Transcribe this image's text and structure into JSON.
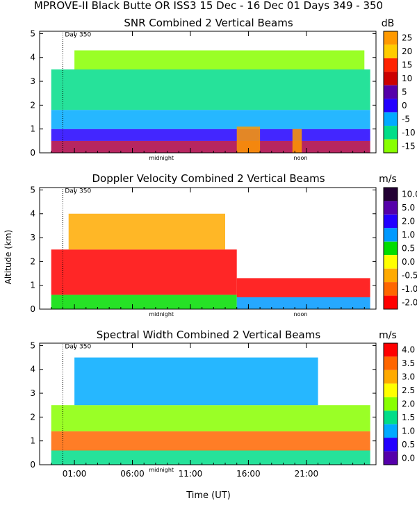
{
  "figure": {
    "title": "MPROVE-II  Black Butte OR  ISS3  15 Dec - 16 Dec 01 Days 349 - 350",
    "ylabel": "Altitude (km)",
    "xlabel": "Time (UT)"
  },
  "chart_data": [
    {
      "type": "heatmap",
      "title": "SNR Combined 2 Vertical Beams",
      "unit": "dB",
      "xlim": [
        -2,
        27
      ],
      "ylim": [
        0,
        5.1
      ],
      "yticks": [
        0,
        1,
        2,
        3,
        4,
        5
      ],
      "yticklabels": [
        "0",
        "1",
        "2",
        "3",
        "4",
        "5"
      ],
      "xticks": [
        1,
        6,
        11,
        16,
        21
      ],
      "xticklabels": [],
      "annotations": [
        {
          "label": "Day 350",
          "x": 0,
          "y": 5.0
        },
        {
          "label": "midnight",
          "x": 8.5,
          "y": 0
        },
        {
          "label": "noon",
          "x": 20.5,
          "y": 0
        }
      ],
      "day_boundary_x": 0,
      "colorbar": {
        "ticks": [
          "25",
          "20",
          "15",
          "10",
          "5",
          "0",
          "-5",
          "-10",
          "-15"
        ],
        "colors": [
          "#ff9900",
          "#ffcc00",
          "#ff2200",
          "#cc0000",
          "#5500aa",
          "#2200ff",
          "#00aaff",
          "#00dd88",
          "#88ff00"
        ]
      },
      "structure": [
        {
          "name": "base",
          "x": [
            -1,
            26.5
          ],
          "y": [
            0,
            0.5
          ],
          "color": "#aa0044"
        },
        {
          "name": "layer",
          "x": [
            -1,
            26.5
          ],
          "y": [
            0.5,
            1.0
          ],
          "color": "#2200ff"
        },
        {
          "name": "mid",
          "x": [
            -1,
            26.5
          ],
          "y": [
            1.0,
            1.8
          ],
          "color": "#00aaff"
        },
        {
          "name": "upper",
          "x": [
            -1,
            26.5
          ],
          "y": [
            1.8,
            3.5
          ],
          "color": "#00dd88"
        },
        {
          "name": "top",
          "x": [
            1,
            26
          ],
          "y": [
            3.5,
            4.3
          ],
          "color": "#88ff00"
        },
        {
          "name": "hot-1",
          "x": [
            15,
            17
          ],
          "y": [
            0,
            1.1
          ],
          "color": "#ff9900"
        },
        {
          "name": "hot-2",
          "x": [
            19.8,
            20.6
          ],
          "y": [
            0,
            1.0
          ],
          "color": "#ff9900"
        }
      ]
    },
    {
      "type": "heatmap",
      "title": "Doppler Velocity Combined 2 Vertical Beams",
      "unit": "m/s",
      "xlim": [
        -2,
        27
      ],
      "ylim": [
        0,
        5.1
      ],
      "yticks": [
        0,
        1,
        2,
        3,
        4,
        5
      ],
      "yticklabels": [
        "0",
        "1",
        "2",
        "3",
        "4",
        "5"
      ],
      "xticks": [
        1,
        6,
        11,
        16,
        21
      ],
      "xticklabels": [],
      "annotations": [
        {
          "label": "Day 350",
          "x": 0,
          "y": 5.0
        },
        {
          "label": "midnight",
          "x": 8.5,
          "y": 0
        },
        {
          "label": "noon",
          "x": 20.5,
          "y": 0
        }
      ],
      "day_boundary_x": 0,
      "colorbar": {
        "ticks": [
          "10.0",
          "5.0",
          "2.0",
          "1.0",
          "0.5",
          "0.0",
          "-0.5",
          "-1.0",
          "-2.0"
        ],
        "colors": [
          "#220033",
          "#5500aa",
          "#2200ff",
          "#0099ff",
          "#00dd00",
          "#ffff00",
          "#ffaa00",
          "#ff6600",
          "#ff0000"
        ]
      },
      "structure": [
        {
          "name": "base",
          "x": [
            -1,
            15
          ],
          "y": [
            0,
            0.6
          ],
          "color": "#00dd00"
        },
        {
          "name": "body",
          "x": [
            -1,
            15
          ],
          "y": [
            0.6,
            2.5
          ],
          "color": "#ff0000"
        },
        {
          "name": "upper",
          "x": [
            0.5,
            14
          ],
          "y": [
            2.5,
            4.0
          ],
          "color": "#ffaa00"
        },
        {
          "name": "late-base",
          "x": [
            15,
            26.5
          ],
          "y": [
            0,
            0.5
          ],
          "color": "#0099ff"
        },
        {
          "name": "late-body",
          "x": [
            15,
            26.5
          ],
          "y": [
            0.5,
            1.3
          ],
          "color": "#ff0000"
        }
      ]
    },
    {
      "type": "heatmap",
      "title": "Spectral Width Combined 2 Vertical Beams",
      "unit": "m/s",
      "xlim": [
        -2,
        27
      ],
      "ylim": [
        0,
        5.1
      ],
      "yticks": [
        0,
        1,
        2,
        3,
        4,
        5
      ],
      "yticklabels": [
        "0",
        "1",
        "2",
        "3",
        "4",
        "5"
      ],
      "xticks": [
        1,
        6,
        11,
        16,
        21
      ],
      "xticklabels": [
        "01:00",
        "06:00",
        "11:00",
        "16:00",
        "21:00"
      ],
      "annotations": [
        {
          "label": "Day 350",
          "x": 0,
          "y": 5.0
        },
        {
          "label": "midnight",
          "x": 8.5,
          "y": 0
        }
      ],
      "day_boundary_x": 0,
      "colorbar": {
        "ticks": [
          "4.0",
          "3.5",
          "3.0",
          "2.5",
          "2.0",
          "1.5",
          "1.0",
          "0.5",
          "0.0"
        ],
        "colors": [
          "#ff0000",
          "#ff6600",
          "#ffaa00",
          "#ffff00",
          "#88ff00",
          "#00dd88",
          "#00aaff",
          "#2200ff",
          "#5500aa"
        ]
      },
      "structure": [
        {
          "name": "base",
          "x": [
            -1,
            26.5
          ],
          "y": [
            0,
            0.6
          ],
          "color": "#00dd88"
        },
        {
          "name": "core",
          "x": [
            -1,
            26.5
          ],
          "y": [
            0.6,
            1.4
          ],
          "color": "#ff6600"
        },
        {
          "name": "mid",
          "x": [
            -1,
            26.5
          ],
          "y": [
            1.4,
            2.5
          ],
          "color": "#88ff00"
        },
        {
          "name": "upper",
          "x": [
            1,
            22
          ],
          "y": [
            2.5,
            4.5
          ],
          "color": "#00aaff"
        }
      ]
    }
  ]
}
